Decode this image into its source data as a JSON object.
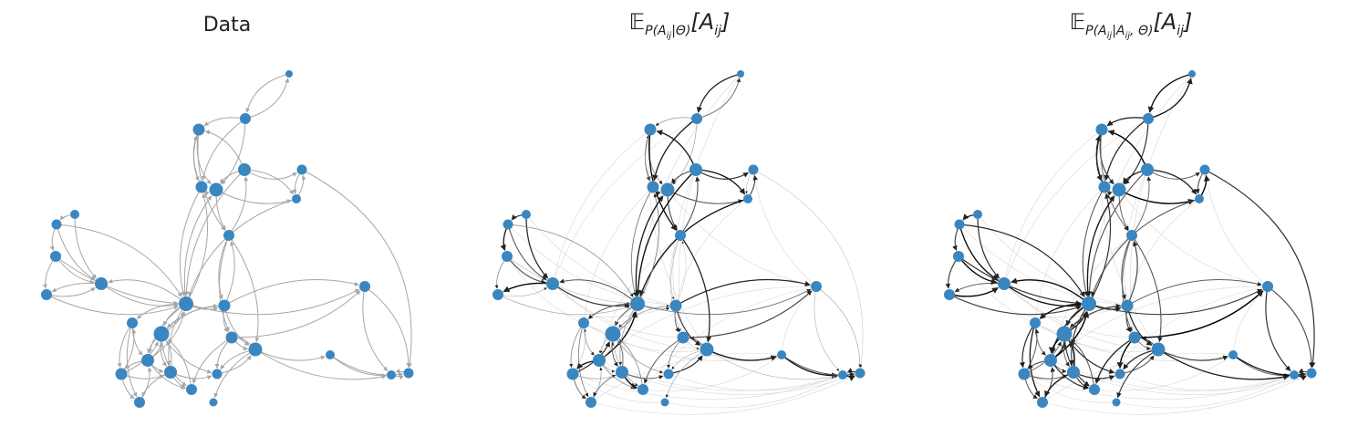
{
  "figure": {
    "node_color": "#3a86c0",
    "panels": [
      {
        "id": "data",
        "title": "Data",
        "title_kind": "plain",
        "edge_style": "uniform",
        "edge_color": "#a6a6a6"
      },
      {
        "id": "expected-prior",
        "title_kind": "math",
        "title_parts": {
          "op": "𝔼",
          "sub": "P(A",
          "sub2": "ij",
          "sub3": "|Θ)",
          "body": "[A",
          "body2": "ij",
          "body3": "]"
        },
        "title_text": "𝔼P(Aij|Θ)[Aij]",
        "edge_style": "weighted",
        "edge_color": "#000000"
      },
      {
        "id": "expected-posterior",
        "title_kind": "math",
        "title_parts": {
          "op": "𝔼",
          "sub": "P(A",
          "sub2": "ij",
          "sub3": "|A",
          "sub4": "ij",
          "sub5": ", Θ)",
          "body": "[A",
          "body2": "ij",
          "body3": "]"
        },
        "title_text": "𝔼P(Aij|Aij, Θ)[Aij]",
        "edge_style": "weighted",
        "edge_color": "#000000"
      }
    ]
  }
}
